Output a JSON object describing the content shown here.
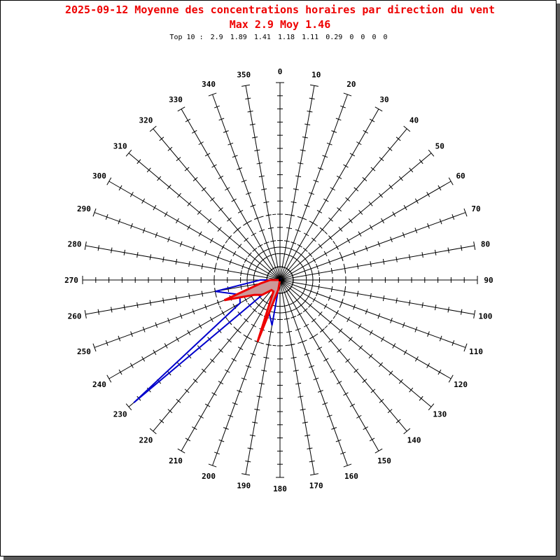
{
  "header": {
    "title": "2025-09-12 Moyenne des concentrations horaires par direction du vent",
    "summary": "Max 2.9 Moy 1.46",
    "top10_prefix": "Top 10 :",
    "top10": [
      "2.9",
      "1.89",
      "1.41",
      "1.18",
      "1.11",
      "0.29",
      "0",
      "0",
      "0",
      "0"
    ]
  },
  "chart_data": {
    "type": "polar-line",
    "title": "2025-09-12 Moyenne des concentrations horaires par direction du vent",
    "subtitle": "Max 2.9 Moy 1.46",
    "direction_labels": [
      0,
      10,
      20,
      30,
      40,
      50,
      60,
      70,
      80,
      90,
      100,
      110,
      120,
      130,
      140,
      150,
      160,
      170,
      180,
      190,
      200,
      210,
      220,
      230,
      240,
      250,
      260,
      270,
      280,
      290,
      300,
      310,
      320,
      330,
      340,
      350
    ],
    "directions": [
      180,
      190,
      200,
      210,
      220,
      230,
      240,
      250,
      260,
      270,
      280,
      290,
      300,
      310,
      320,
      330,
      340,
      350
    ],
    "radial_range": [
      0,
      3
    ],
    "radial_tick_step": 0.2,
    "dashed_circles": [
      0.2,
      1.0
    ],
    "solid_circles": [
      0.5
    ],
    "series": [
      {
        "color": "#0000cc",
        "fill": false,
        "values": [
          0,
          0.7,
          0.5,
          0,
          0,
          2.9,
          0.7,
          0.65,
          1.0,
          0.3,
          0,
          0,
          0,
          0,
          0,
          0,
          0,
          0
        ]
      },
      {
        "color": "#ee0000",
        "fill": "#cc9999",
        "values": [
          0,
          0.15,
          1.0,
          0.2,
          0.2,
          0.35,
          0.45,
          0.9,
          0.3,
          0.15,
          0,
          0,
          0,
          0,
          0,
          0,
          0,
          0
        ]
      }
    ],
    "colors": {
      "axis": "#000000",
      "title": "#ee0000",
      "fill": "#cc9999"
    }
  }
}
